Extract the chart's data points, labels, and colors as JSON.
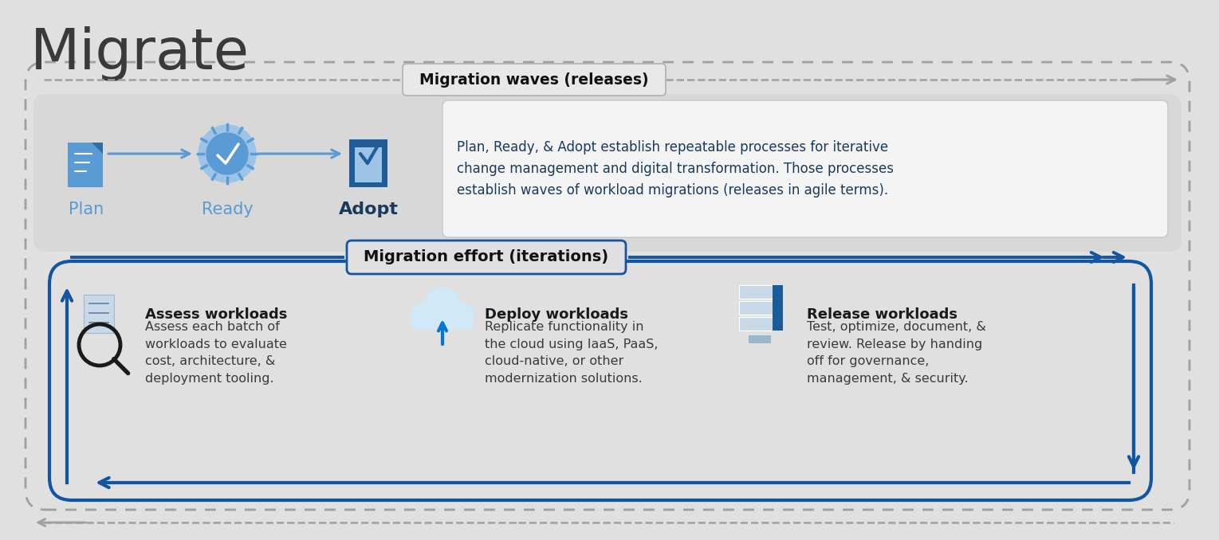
{
  "title": "Migrate",
  "title_fontsize": 52,
  "title_color": "#3a3a3a",
  "bg_color": "#e0e0e0",
  "blue_dark": "#1a3a5c",
  "blue_mid": "#0078d4",
  "blue_arrow": "#1255a0",
  "dashed_color": "#a0a0a0",
  "waves_label": "Migration waves (releases)",
  "waves_label_fontsize": 13.5,
  "effort_label": "Migration effort (iterations)",
  "effort_label_fontsize": 14,
  "plan_label": "Plan",
  "ready_label": "Ready",
  "adopt_label": "Adopt",
  "icon_label_fontsize": 15,
  "desc_text": "Plan, Ready, & Adopt establish repeatable processes for iterative\nchange management and digital transformation. Those processes\nestablish waves of workload migrations (releases in agile terms).",
  "desc_color": "#1a3a5c",
  "desc_fontsize": 12,
  "assess_title": "Assess workloads",
  "assess_body": "Assess each batch of\nworkloads to evaluate\ncost, architecture, &\ndeployment tooling.",
  "deploy_title": "Deploy workloads",
  "deploy_body": "Replicate functionality in\nthe cloud using IaaS, PaaS,\ncloud-native, or other\nmodernization solutions.",
  "release_title": "Release workloads",
  "release_body": "Test, optimize, document, &\nreview. Release by handing\noff for governance,\nmanagement, & security.",
  "section_title_fontsize": 13,
  "section_body_fontsize": 11.5,
  "section_title_color": "#1a1a1a",
  "section_body_color": "#3a3a3a"
}
